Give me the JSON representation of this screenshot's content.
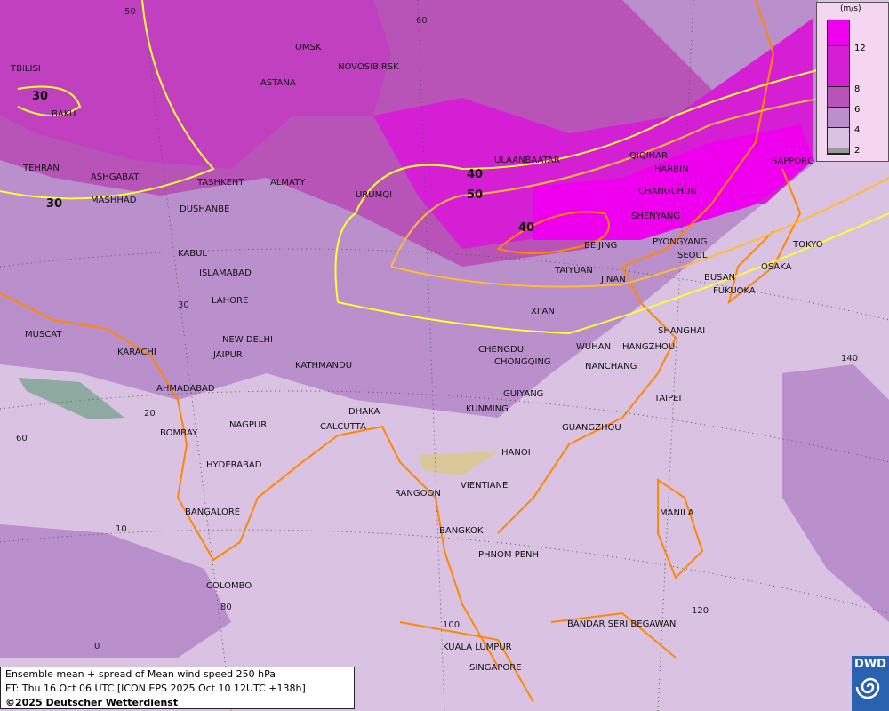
{
  "title": "Ensemble mean + spread of Mean wind speed 250 hPa",
  "forecast_time": "FT: Thu 16 Oct 06 UTC [ICON EPS 2025 Oct 10 12UTC +138h]",
  "copyright": "©2025 Deutscher Wetterdienst",
  "logo_text": "DWD",
  "legend": {
    "unit": "(m/s)",
    "ticks": [
      "12",
      "8",
      "6",
      "4",
      "2"
    ],
    "colors": [
      "#ee00ee",
      "#d41fd4",
      "#b854b8",
      "#b98fcc",
      "#d9c2e2",
      "#999999"
    ]
  },
  "contour_labels": [
    "30",
    "30",
    "40",
    "50",
    "40"
  ],
  "contour_colors": {
    "30": "#ffff33",
    "40": "#ffbb33",
    "50": "#ff8800"
  },
  "grid_labels": [
    "50",
    "60",
    "30",
    "20",
    "10",
    "0",
    "60",
    "80",
    "100",
    "120",
    "140"
  ],
  "cities": [
    "TBILISI",
    "BAKU",
    "OMSK",
    "NOVOSIBIRSK",
    "ASTANA",
    "TEHRAN",
    "ASHGABAT",
    "MASHHAD",
    "TASHKENT",
    "ALMATY",
    "DUSHANBE",
    "URUMQI",
    "ULAANBAATAR",
    "QIQIHAR",
    "HARBIN",
    "SAPPORO",
    "CHANGCHUN",
    "SHENYANG",
    "BEIJING",
    "PYONGYANG",
    "SEOUL",
    "TOKYO",
    "OSAKA",
    "BUSAN",
    "FUKUOKA",
    "KABUL",
    "ISLAMABAD",
    "LAHORE",
    "TAIYUAN",
    "JINAN",
    "XI'AN",
    "NEW DELHI",
    "JAIPUR",
    "MUSCAT",
    "KARACHI",
    "KATHMANDU",
    "CHENGDU",
    "CHONGQING",
    "WUHAN",
    "SHANGHAI",
    "HANGZHOU",
    "NANCHANG",
    "AHMADABAD",
    "GUIYANG",
    "TAIPEI",
    "KUNMING",
    "DHAKA",
    "NAGPUR",
    "CALCUTTA",
    "BOMBAY",
    "GUANGZHOU",
    "HANOI",
    "HYDERABAD",
    "RANGOON",
    "VIENTIANE",
    "BANGALORE",
    "MANILA",
    "BANGKOK",
    "PHNOM PENH",
    "COLOMBO",
    "BANDAR SERI BEGAWAN",
    "KUALA LUMPUR",
    "SINGAPORE"
  ]
}
